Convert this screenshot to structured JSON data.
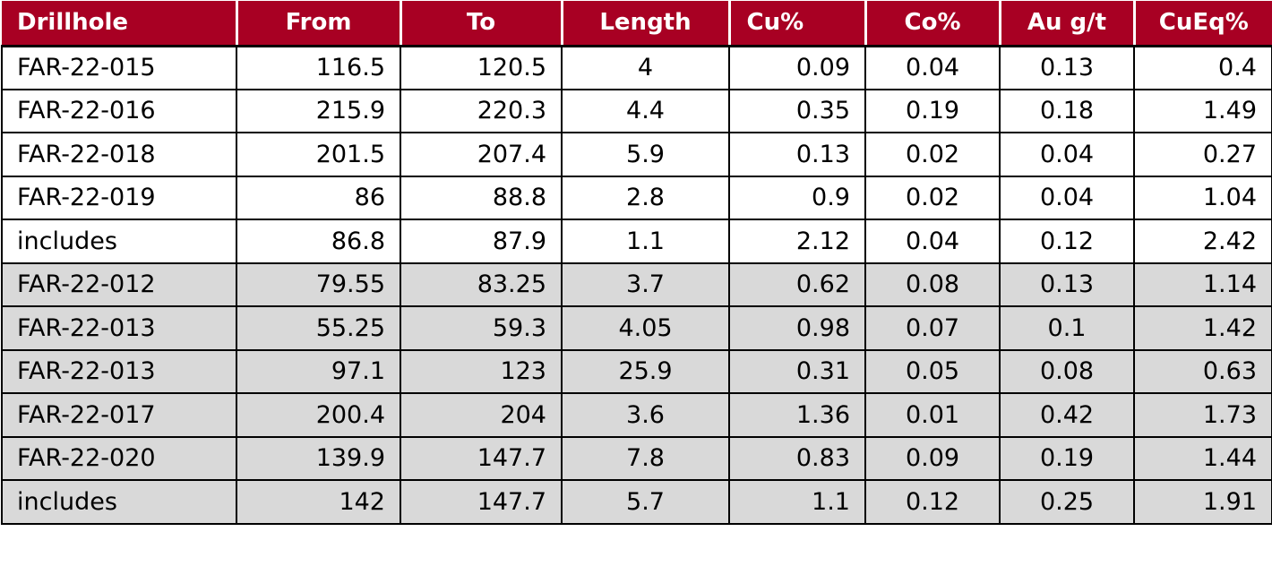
{
  "table": {
    "headers": [
      "Drillhole",
      "From",
      "To",
      "Length",
      "Cu%",
      "Co%",
      "Au g/t",
      "CuEq%"
    ],
    "rows": [
      [
        "FAR-22-015",
        "116.5",
        "120.5",
        "4",
        "0.09",
        "0.04",
        "0.13",
        "0.4"
      ],
      [
        "FAR-22-016",
        "215.9",
        "220.3",
        "4.4",
        "0.35",
        "0.19",
        "0.18",
        "1.49"
      ],
      [
        "FAR-22-018",
        "201.5",
        "207.4",
        "5.9",
        "0.13",
        "0.02",
        "0.04",
        "0.27"
      ],
      [
        "FAR-22-019",
        "86",
        "88.8",
        "2.8",
        "0.9",
        "0.02",
        "0.04",
        "1.04"
      ],
      [
        "includes",
        "86.8",
        "87.9",
        "1.1",
        "2.12",
        "0.04",
        "0.12",
        "2.42"
      ],
      [
        "FAR-22-012",
        "79.55",
        "83.25",
        "3.7",
        "0.62",
        "0.08",
        "0.13",
        "1.14"
      ],
      [
        "FAR-22-013",
        "55.25",
        "59.3",
        "4.05",
        "0.98",
        "0.07",
        "0.1",
        "1.42"
      ],
      [
        "FAR-22-013",
        "97.1",
        "123",
        "25.9",
        "0.31",
        "0.05",
        "0.08",
        "0.63"
      ],
      [
        "FAR-22-017",
        "200.4",
        "204",
        "3.6",
        "1.36",
        "0.01",
        "0.42",
        "1.73"
      ],
      [
        "FAR-22-020",
        "139.9",
        "147.7",
        "7.8",
        "0.83",
        "0.09",
        "0.19",
        "1.44"
      ],
      [
        "includes",
        "142",
        "147.7",
        "5.7",
        "1.1",
        "0.12",
        "0.25",
        "1.91"
      ]
    ]
  },
  "colors": {
    "header_bg": "#a80023",
    "header_text": "#ffffff",
    "shaded_row_bg": "#d9d9d9"
  }
}
